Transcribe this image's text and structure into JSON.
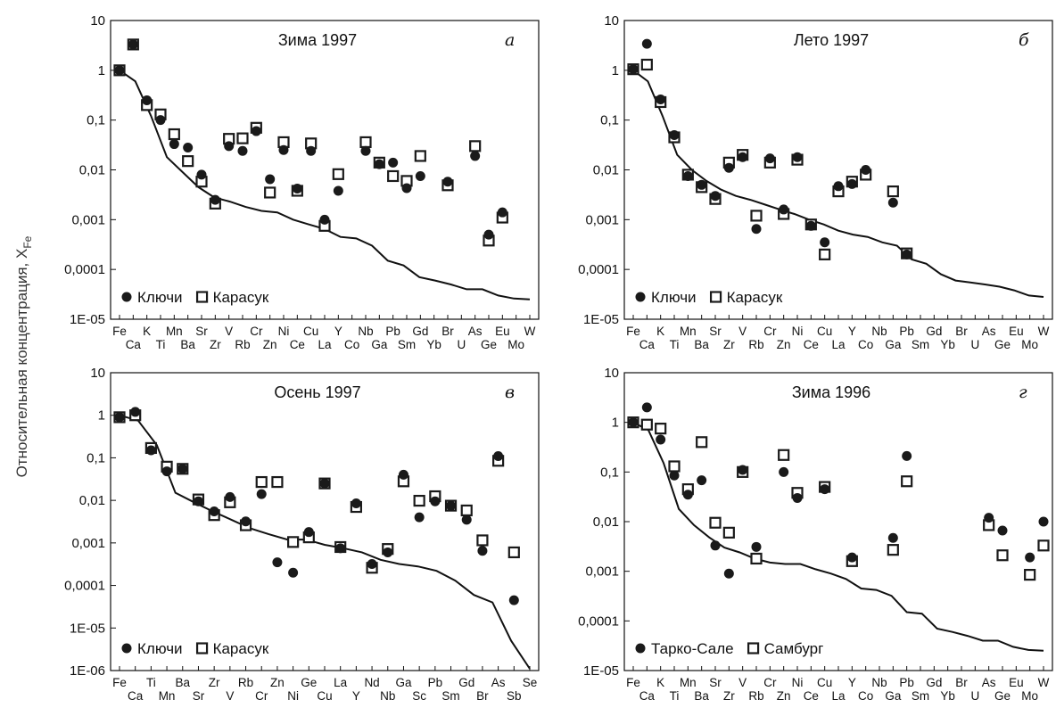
{
  "y_label_main": "Относительная концентрация, X",
  "y_label_sub": "Fe",
  "chart_data": [
    {
      "type": "scatter",
      "title": "Зима 1997",
      "panel": "а",
      "y_scale": "log",
      "ylim": [
        1e-05,
        10
      ],
      "y_ticks": [
        "10",
        "1",
        "0,1",
        "0,01",
        "0,001",
        "0,0001",
        "1E-05"
      ],
      "categories_top": [
        "Fe",
        "K",
        "Mn",
        "Sr",
        "V",
        "Cr",
        "Ni",
        "Cu",
        "Y",
        "Nb",
        "Pb",
        "Gd",
        "Br",
        "As",
        "Eu",
        "W"
      ],
      "categories_bottom": [
        "Ca",
        "Ti",
        "Ba",
        "Zr",
        "Rb",
        "Zn",
        "Ce",
        "La",
        "Co",
        "Ga",
        "Sm",
        "Yb",
        "U",
        "Ge",
        "Mo"
      ],
      "legend": [
        "Ключи",
        "Карасук"
      ],
      "line": [
        1,
        0.6,
        0.12,
        0.018,
        0.009,
        0.0045,
        0.0028,
        0.0023,
        0.0018,
        0.0015,
        0.0014,
        0.001,
        0.0008,
        0.00065,
        0.00045,
        0.00042,
        0.0003,
        0.00015,
        0.00012,
        7e-05,
        6e-05,
        5e-05,
        4e-05,
        4e-05,
        3e-05,
        2.6e-05,
        2.5e-05
      ],
      "series": [
        {
          "name": "Ключи",
          "marker": "circle",
          "points": [
            [
              0,
              1
            ],
            [
              1,
              3.3
            ],
            [
              2,
              0.25
            ],
            [
              3,
              0.1
            ],
            [
              4,
              0.033
            ],
            [
              5,
              0.028
            ],
            [
              6,
              0.008
            ],
            [
              7,
              0.0025
            ],
            [
              8,
              0.03
            ],
            [
              9,
              0.024
            ],
            [
              10,
              0.06
            ],
            [
              11,
              0.0065
            ],
            [
              12,
              0.025
            ],
            [
              13,
              0.0042
            ],
            [
              14,
              0.024
            ],
            [
              15,
              0.001
            ],
            [
              16,
              0.0038
            ],
            [
              18,
              0.024
            ],
            [
              19,
              0.013
            ],
            [
              20,
              0.014
            ],
            [
              21,
              0.0043
            ],
            [
              22,
              0.0075
            ],
            [
              24,
              0.0058
            ],
            [
              26,
              0.019
            ],
            [
              27,
              0.0005
            ],
            [
              28,
              0.0014
            ]
          ]
        },
        {
          "name": "Карасук",
          "marker": "square",
          "points": [
            [
              0,
              1
            ],
            [
              1,
              3.3
            ],
            [
              2,
              0.2
            ],
            [
              3,
              0.13
            ],
            [
              4,
              0.052
            ],
            [
              5,
              0.015
            ],
            [
              6,
              0.0058
            ],
            [
              7,
              0.0021
            ],
            [
              8,
              0.042
            ],
            [
              9,
              0.043
            ],
            [
              10,
              0.07
            ],
            [
              11,
              0.0035
            ],
            [
              12,
              0.036
            ],
            [
              13,
              0.0038
            ],
            [
              14,
              0.034
            ],
            [
              15,
              0.00075
            ],
            [
              16,
              0.0082
            ],
            [
              18,
              0.036
            ],
            [
              19,
              0.014
            ],
            [
              20,
              0.0075
            ],
            [
              21,
              0.006
            ],
            [
              22,
              0.019
            ],
            [
              24,
              0.0049
            ],
            [
              26,
              0.03
            ],
            [
              27,
              0.00038
            ],
            [
              28,
              0.0011
            ]
          ]
        }
      ]
    },
    {
      "type": "scatter",
      "title": "Лето 1997",
      "panel": "б",
      "y_scale": "log",
      "ylim": [
        1e-05,
        10
      ],
      "y_ticks": [
        "10",
        "1",
        "0,1",
        "0,01",
        "0,001",
        "0,0001",
        "1E-05"
      ],
      "categories_top": [
        "Fe",
        "K",
        "Mn",
        "Sr",
        "V",
        "Cr",
        "Ni",
        "Cu",
        "Y",
        "Nb",
        "Pb",
        "Gd",
        "Br",
        "As",
        "Eu",
        "W"
      ],
      "categories_bottom": [
        "Ca",
        "Ti",
        "Ba",
        "Zr",
        "Rb",
        "Zn",
        "Ce",
        "La",
        "Co",
        "Ga",
        "Sm",
        "Yb",
        "U",
        "Ge",
        "Mo"
      ],
      "legend": [
        "Ключи",
        "Карасук"
      ],
      "line": [
        1,
        0.6,
        0.12,
        0.02,
        0.01,
        0.006,
        0.004,
        0.003,
        0.0025,
        0.002,
        0.0016,
        0.0013,
        0.001,
        0.0008,
        0.0006,
        0.0005,
        0.00045,
        0.00035,
        0.0003,
        0.00016,
        0.00013,
        8e-05,
        6e-05,
        5.5e-05,
        5e-05,
        4.5e-05,
        3.8e-05,
        3e-05,
        2.8e-05
      ],
      "series": [
        {
          "name": "Ключи",
          "marker": "circle",
          "points": [
            [
              0,
              1.05
            ],
            [
              1,
              3.4
            ],
            [
              2,
              0.26
            ],
            [
              3,
              0.05
            ],
            [
              4,
              0.0075
            ],
            [
              5,
              0.005
            ],
            [
              6,
              0.003
            ],
            [
              7,
              0.011
            ],
            [
              8,
              0.018
            ],
            [
              9,
              0.00065
            ],
            [
              10,
              0.017
            ],
            [
              11,
              0.0016
            ],
            [
              12,
              0.018
            ],
            [
              13,
              0.00075
            ],
            [
              14,
              0.00035
            ],
            [
              15,
              0.0047
            ],
            [
              16,
              0.0052
            ],
            [
              17,
              0.01
            ],
            [
              19,
              0.0022
            ],
            [
              20,
              0.0002
            ]
          ]
        },
        {
          "name": "Карасук",
          "marker": "square",
          "points": [
            [
              0,
              1.05
            ],
            [
              1,
              1.3
            ],
            [
              2,
              0.23
            ],
            [
              3,
              0.045
            ],
            [
              4,
              0.008
            ],
            [
              5,
              0.0045
            ],
            [
              6,
              0.0026
            ],
            [
              7,
              0.014
            ],
            [
              8,
              0.02
            ],
            [
              9,
              0.0012
            ],
            [
              10,
              0.014
            ],
            [
              11,
              0.0013
            ],
            [
              12,
              0.016
            ],
            [
              13,
              0.0008
            ],
            [
              14,
              0.0002
            ],
            [
              15,
              0.0037
            ],
            [
              16,
              0.0058
            ],
            [
              17,
              0.008
            ],
            [
              19,
              0.0037
            ],
            [
              20,
              0.00021
            ]
          ]
        }
      ]
    },
    {
      "type": "scatter",
      "title": "Осень 1997",
      "panel": "в",
      "y_scale": "log",
      "ylim": [
        1e-06,
        10
      ],
      "y_ticks": [
        "10",
        "1",
        "0,1",
        "0,01",
        "0,001",
        "0,0001",
        "1E-05",
        "1E-06"
      ],
      "categories_top": [
        "Fe",
        "Ti",
        "Ba",
        "Zr",
        "Rb",
        "Zn",
        "Ge",
        "La",
        "Nd",
        "Ga",
        "Pb",
        "Gd",
        "As",
        "Se"
      ],
      "categories_bottom": [
        "Ca",
        "Mn",
        "Sr",
        "V",
        "Cr",
        "Ni",
        "Cu",
        "Y",
        "Nb",
        "Sc",
        "Sm",
        "Br",
        "Sb"
      ],
      "legend": [
        "Ключи",
        "Карасук"
      ],
      "line": [
        1,
        0.75,
        0.2,
        0.015,
        0.009,
        0.0055,
        0.0035,
        0.0022,
        0.0016,
        0.0012,
        0.0012,
        0.0009,
        0.00075,
        0.0006,
        0.0004,
        0.00032,
        0.00028,
        0.00022,
        0.00013,
        6e-05,
        4e-05,
        5e-06,
        1.1e-06
      ],
      "series": [
        {
          "name": "Ключи",
          "marker": "circle",
          "points": [
            [
              0,
              0.9
            ],
            [
              1,
              1.2
            ],
            [
              2,
              0.15
            ],
            [
              3,
              0.048
            ],
            [
              4,
              0.055
            ],
            [
              5,
              0.0095
            ],
            [
              6,
              0.0055
            ],
            [
              7,
              0.012
            ],
            [
              8,
              0.0032
            ],
            [
              9,
              0.014
            ],
            [
              10,
              0.00035
            ],
            [
              11,
              0.0002
            ],
            [
              12,
              0.0018
            ],
            [
              13,
              0.025
            ],
            [
              14,
              0.00075
            ],
            [
              15,
              0.0085
            ],
            [
              16,
              0.00032
            ],
            [
              17,
              0.0006
            ],
            [
              18,
              0.04
            ],
            [
              19,
              0.004
            ],
            [
              20,
              0.0095
            ],
            [
              21,
              0.0075
            ],
            [
              22,
              0.0035
            ],
            [
              23,
              0.00065
            ],
            [
              24,
              0.11
            ],
            [
              25,
              4.5e-05
            ]
          ]
        },
        {
          "name": "Карасук",
          "marker": "square",
          "points": [
            [
              0,
              0.9
            ],
            [
              1,
              1
            ],
            [
              2,
              0.17
            ],
            [
              3,
              0.062
            ],
            [
              4,
              0.055
            ],
            [
              5,
              0.0105
            ],
            [
              6,
              0.0045
            ],
            [
              7,
              0.009
            ],
            [
              8,
              0.0026
            ],
            [
              9,
              0.027
            ],
            [
              10,
              0.027
            ],
            [
              11,
              0.00105
            ],
            [
              12,
              0.00135
            ],
            [
              13,
              0.025
            ],
            [
              14,
              0.0008
            ],
            [
              15,
              0.007
            ],
            [
              16,
              0.00026
            ],
            [
              17,
              0.00072
            ],
            [
              18,
              0.028
            ],
            [
              19,
              0.0098
            ],
            [
              20,
              0.0125
            ],
            [
              21,
              0.0075
            ],
            [
              22,
              0.0058
            ],
            [
              23,
              0.00115
            ],
            [
              24,
              0.085
            ],
            [
              25,
              0.0006
            ]
          ]
        }
      ]
    },
    {
      "type": "scatter",
      "title": "Зима 1996",
      "panel": "г",
      "y_scale": "log",
      "ylim": [
        1e-05,
        10
      ],
      "y_ticks": [
        "10",
        "1",
        "0,1",
        "0,01",
        "0,001",
        "0,0001",
        "1E-05"
      ],
      "categories_top": [
        "Fe",
        "K",
        "Mn",
        "Sr",
        "V",
        "Cr",
        "Ni",
        "Cu",
        "Y",
        "Nb",
        "Pb",
        "Gd",
        "Br",
        "As",
        "Eu",
        "W"
      ],
      "categories_bottom": [
        "Ca",
        "Ti",
        "Ba",
        "Zr",
        "Rb",
        "Zn",
        "Ce",
        "La",
        "Co",
        "Ga",
        "Sm",
        "Yb",
        "U",
        "Ge",
        "Mo"
      ],
      "legend": [
        "Тарко-Сале",
        "Самбург"
      ],
      "line": [
        1,
        0.7,
        0.15,
        0.018,
        0.0085,
        0.0048,
        0.003,
        0.0024,
        0.0018,
        0.0015,
        0.0014,
        0.0014,
        0.0011,
        0.0009,
        0.0007,
        0.00045,
        0.00042,
        0.00032,
        0.00015,
        0.00014,
        7e-05,
        6e-05,
        5e-05,
        4e-05,
        4e-05,
        3e-05,
        2.6e-05,
        2.5e-05
      ],
      "series": [
        {
          "name": "Тарко-Сале",
          "marker": "circle",
          "points": [
            [
              0,
              1
            ],
            [
              1,
              2
            ],
            [
              2,
              0.45
            ],
            [
              3,
              0.085
            ],
            [
              4,
              0.035
            ],
            [
              5,
              0.068
            ],
            [
              6,
              0.0033
            ],
            [
              7,
              0.0009
            ],
            [
              8,
              0.11
            ],
            [
              9,
              0.0031
            ],
            [
              11,
              0.1
            ],
            [
              12,
              0.03
            ],
            [
              14,
              0.045
            ],
            [
              16,
              0.0019
            ],
            [
              19,
              0.0047
            ],
            [
              20,
              0.21
            ],
            [
              26,
              0.012
            ],
            [
              27,
              0.0066
            ],
            [
              29,
              0.0019
            ],
            [
              30,
              0.01
            ]
          ]
        },
        {
          "name": "Самбург",
          "marker": "square",
          "points": [
            [
              0,
              1
            ],
            [
              1,
              0.9
            ],
            [
              2,
              0.75
            ],
            [
              3,
              0.13
            ],
            [
              4,
              0.045
            ],
            [
              5,
              0.4
            ],
            [
              6,
              0.0095
            ],
            [
              7,
              0.006
            ],
            [
              8,
              0.1
            ],
            [
              9,
              0.0018
            ],
            [
              11,
              0.22
            ],
            [
              12,
              0.038
            ],
            [
              14,
              0.05
            ],
            [
              16,
              0.0016
            ],
            [
              19,
              0.0027
            ],
            [
              20,
              0.065
            ],
            [
              26,
              0.0085
            ],
            [
              27,
              0.0021
            ],
            [
              29,
              0.00085
            ],
            [
              30,
              0.0033
            ]
          ]
        }
      ]
    }
  ]
}
